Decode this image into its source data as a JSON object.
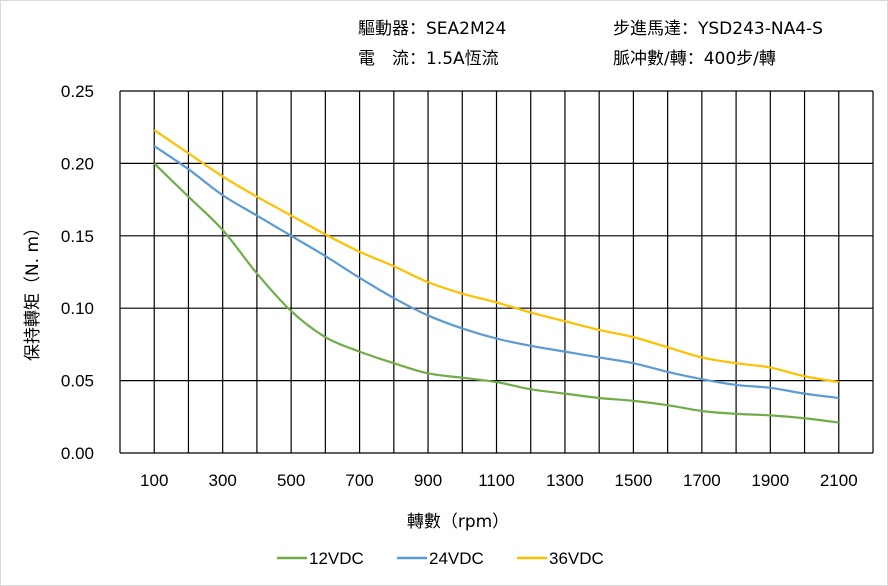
{
  "header": {
    "driver_label": "驅動器：",
    "driver_value": "SEA2M24",
    "motor_label": "步進馬達：",
    "motor_value": "YSD243-NA4-S",
    "current_label": "電　流：",
    "current_value": "1.5A恆流",
    "pulse_label": "脈冲數/轉：",
    "pulse_value": "400步/轉"
  },
  "chart_data": {
    "type": "line",
    "title": "",
    "xlabel": "轉數（rpm）",
    "ylabel": "保持轉矩（N. m）",
    "xlim": [
      0,
      2200
    ],
    "ylim": [
      0,
      0.25
    ],
    "grid": true,
    "legend_position": "bottom",
    "x_ticks": [
      "100",
      "300",
      "500",
      "700",
      "900",
      "1100",
      "1300",
      "1500",
      "1700",
      "1900",
      "2100"
    ],
    "y_ticks": [
      "0.00",
      "0.05",
      "0.10",
      "0.15",
      "0.20",
      "0.25"
    ],
    "x": [
      100,
      200,
      300,
      400,
      500,
      600,
      700,
      800,
      900,
      1000,
      1100,
      1200,
      1300,
      1400,
      1500,
      1600,
      1700,
      1800,
      1900,
      2000,
      2100
    ],
    "series": [
      {
        "name": "12VDC",
        "color": "#70ad47",
        "values": [
          0.2,
          0.177,
          0.154,
          0.124,
          0.098,
          0.08,
          0.07,
          0.062,
          0.055,
          0.052,
          0.049,
          0.044,
          0.041,
          0.038,
          0.036,
          0.033,
          0.029,
          0.027,
          0.026,
          0.024,
          0.021
        ]
      },
      {
        "name": "24VDC",
        "color": "#5b9bd5",
        "values": [
          0.212,
          0.196,
          0.178,
          0.164,
          0.15,
          0.136,
          0.121,
          0.107,
          0.095,
          0.086,
          0.079,
          0.074,
          0.07,
          0.066,
          0.062,
          0.056,
          0.051,
          0.047,
          0.045,
          0.041,
          0.038
        ]
      },
      {
        "name": "36VDC",
        "color": "#ffc000",
        "values": [
          0.223,
          0.207,
          0.191,
          0.177,
          0.164,
          0.151,
          0.139,
          0.129,
          0.118,
          0.11,
          0.104,
          0.097,
          0.091,
          0.085,
          0.08,
          0.073,
          0.066,
          0.062,
          0.059,
          0.053,
          0.049
        ]
      }
    ]
  }
}
